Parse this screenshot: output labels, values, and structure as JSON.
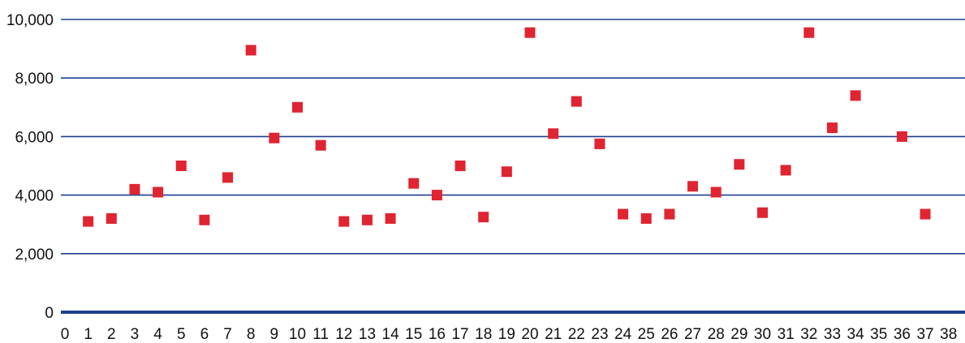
{
  "chart_data": {
    "type": "scatter",
    "title": "",
    "xlabel": "",
    "ylabel": "",
    "xlim": [
      0,
      38
    ],
    "ylim": [
      0,
      10000
    ],
    "x_ticks": [
      "0",
      "1",
      "2",
      "3",
      "4",
      "5",
      "6",
      "7",
      "8",
      "9",
      "10",
      "11",
      "12",
      "13",
      "14",
      "15",
      "16",
      "17",
      "18",
      "19",
      "20",
      "21",
      "22",
      "23",
      "24",
      "25",
      "26",
      "27",
      "28",
      "29",
      "30",
      "31",
      "32",
      "33",
      "34",
      "35",
      "36",
      "37",
      "38"
    ],
    "y_ticks": [
      "0",
      "2,000",
      "4,000",
      "6,000",
      "8,000",
      "10,000"
    ],
    "y_tick_values": [
      0,
      2000,
      4000,
      6000,
      8000,
      10000
    ],
    "grid": "horizontal",
    "legend": "none",
    "colors": {
      "marker": "#e02431",
      "gridline": "#1f3f8f",
      "axis": "#1f3f8f"
    },
    "series": [
      {
        "x": [
          1,
          2,
          3,
          4,
          5,
          6,
          7,
          8,
          9,
          10,
          11,
          12,
          13,
          14,
          15,
          16,
          17,
          18,
          19,
          20,
          21,
          22,
          23,
          24,
          25,
          26,
          27,
          28,
          29,
          30,
          31,
          32,
          33,
          34,
          35,
          36,
          37
        ],
        "y": [
          3100,
          3200,
          4200,
          4100,
          5000,
          3150,
          4600,
          8950,
          5950,
          7000,
          5700,
          3100,
          3150,
          3200,
          4400,
          4000,
          5000,
          3250,
          4800,
          9550,
          6100,
          7200,
          5750,
          3350,
          3200,
          3350,
          4300,
          4100,
          5050,
          3400,
          4850,
          9550,
          6300,
          7400,
          null,
          6000,
          3350
        ]
      }
    ]
  }
}
